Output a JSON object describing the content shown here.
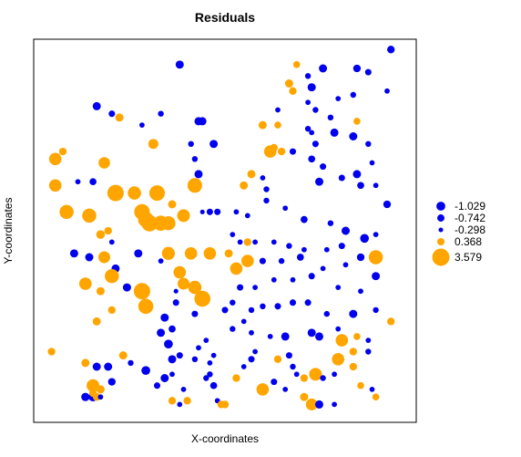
{
  "chart_data": {
    "type": "scatter",
    "title": "Residuals",
    "xlabel": "X-coordinates",
    "ylabel": "Y-coordinates",
    "xlim": [
      0,
      100
    ],
    "ylim": [
      0,
      100
    ],
    "axis_ticks": false,
    "grid": false,
    "colors": {
      "negative": "#0000EE",
      "positive": "#FFA500"
    },
    "legend": {
      "position": "right",
      "entries": [
        {
          "label": "-1.029",
          "value": -1.029,
          "color": "#0000EE"
        },
        {
          "label": "-0.742",
          "value": -0.742,
          "color": "#0000EE"
        },
        {
          "label": "-0.298",
          "value": -0.298,
          "color": "#0000EE"
        },
        {
          "label": "0.368",
          "value": 0.368,
          "color": "#FFA500"
        },
        {
          "label": "3.579",
          "value": 3.579,
          "color": "#FFA500"
        }
      ]
    },
    "points": [
      {
        "x": 38,
        "y": 94,
        "r": -0.9
      },
      {
        "x": 16,
        "y": 83,
        "r": -0.9
      },
      {
        "x": 20,
        "y": 81,
        "r": -0.6
      },
      {
        "x": 22,
        "y": 80,
        "r": 0.5
      },
      {
        "x": 28,
        "y": 78,
        "r": -0.4
      },
      {
        "x": 43,
        "y": 79,
        "r": -0.9
      },
      {
        "x": 44,
        "y": 79,
        "r": -0.9
      },
      {
        "x": 31,
        "y": 73,
        "r": 0.9
      },
      {
        "x": 33,
        "y": 81,
        "r": -0.5
      },
      {
        "x": 7,
        "y": 71,
        "r": 0.4
      },
      {
        "x": 5,
        "y": 69,
        "r": 1.6
      },
      {
        "x": 18,
        "y": 68,
        "r": 1.3
      },
      {
        "x": 41,
        "y": 73,
        "r": -0.5
      },
      {
        "x": 42,
        "y": 69,
        "r": -0.5
      },
      {
        "x": 47,
        "y": 73,
        "r": -0.9
      },
      {
        "x": 43,
        "y": 65,
        "r": -0.9
      },
      {
        "x": 5,
        "y": 62,
        "r": 1.6
      },
      {
        "x": 11,
        "y": 63,
        "r": -0.4
      },
      {
        "x": 15,
        "y": 63,
        "r": -0.7
      },
      {
        "x": 21,
        "y": 60,
        "r": 3.2
      },
      {
        "x": 26,
        "y": 60,
        "r": 1.9
      },
      {
        "x": 32,
        "y": 60,
        "r": 2.8
      },
      {
        "x": 42,
        "y": 62,
        "r": 2.4
      },
      {
        "x": 36,
        "y": 57,
        "r": 0.5
      },
      {
        "x": 8,
        "y": 55,
        "r": 2.2
      },
      {
        "x": 14,
        "y": 54,
        "r": 2.2
      },
      {
        "x": 28,
        "y": 55,
        "r": 2.8
      },
      {
        "x": 29,
        "y": 53,
        "r": 2.8
      },
      {
        "x": 30,
        "y": 52,
        "r": 3.2
      },
      {
        "x": 33,
        "y": 52,
        "r": 2.6
      },
      {
        "x": 35,
        "y": 52,
        "r": 2.2
      },
      {
        "x": 39,
        "y": 54,
        "r": 1.7
      },
      {
        "x": 44,
        "y": 55,
        "r": -0.3
      },
      {
        "x": 46,
        "y": 55,
        "r": -0.6
      },
      {
        "x": 48,
        "y": 55,
        "r": -0.6
      },
      {
        "x": 17,
        "y": 49,
        "r": 0.6
      },
      {
        "x": 19,
        "y": 50,
        "r": 0.4
      },
      {
        "x": 20,
        "y": 47,
        "r": -0.4
      },
      {
        "x": 10,
        "y": 44,
        "r": -0.9
      },
      {
        "x": 14,
        "y": 43,
        "r": -0.9
      },
      {
        "x": 21,
        "y": 40,
        "r": -0.9
      },
      {
        "x": 18,
        "y": 43,
        "r": 1.4
      },
      {
        "x": 27,
        "y": 44,
        "r": -0.9
      },
      {
        "x": 35,
        "y": 44,
        "r": 1.8
      },
      {
        "x": 41,
        "y": 44,
        "r": 1.6
      },
      {
        "x": 46,
        "y": 44,
        "r": 1.6
      },
      {
        "x": 20,
        "y": 38,
        "r": 2.2
      },
      {
        "x": 38,
        "y": 39,
        "r": 1.6
      },
      {
        "x": 39,
        "y": 36,
        "r": 1.4
      },
      {
        "x": 42,
        "y": 35,
        "r": 1.9
      },
      {
        "x": 44,
        "y": 32,
        "r": 3.0
      },
      {
        "x": 13,
        "y": 36,
        "r": 1.6
      },
      {
        "x": 17,
        "y": 34,
        "r": 0.5
      },
      {
        "x": 24,
        "y": 35,
        "r": -0.9
      },
      {
        "x": 28,
        "y": 34,
        "r": 3.2
      },
      {
        "x": 29,
        "y": 30,
        "r": 2.6
      },
      {
        "x": 33,
        "y": 42,
        "r": -0.4
      },
      {
        "x": 37,
        "y": 34,
        "r": -0.3
      },
      {
        "x": 37,
        "y": 31,
        "r": -0.6
      },
      {
        "x": 42,
        "y": 28,
        "r": -0.6
      },
      {
        "x": 20,
        "y": 29,
        "r": 0.4
      },
      {
        "x": 16,
        "y": 26,
        "r": 0.5
      },
      {
        "x": 34,
        "y": 27,
        "r": -0.9
      },
      {
        "x": 36,
        "y": 24,
        "r": -0.7
      },
      {
        "x": 33,
        "y": 23,
        "r": -0.9
      },
      {
        "x": 35,
        "y": 20,
        "r": -1.0
      },
      {
        "x": 38,
        "y": 17,
        "r": -0.6
      },
      {
        "x": 36,
        "y": 12,
        "r": -0.4
      },
      {
        "x": 43,
        "y": 19,
        "r": -0.4
      },
      {
        "x": 45,
        "y": 21,
        "r": -0.4
      },
      {
        "x": 36,
        "y": 16,
        "r": -0.9
      },
      {
        "x": 4,
        "y": 18,
        "r": 0.4
      },
      {
        "x": 13,
        "y": 15,
        "r": 0.5
      },
      {
        "x": 16,
        "y": 14,
        "r": -0.9
      },
      {
        "x": 19,
        "y": 14,
        "r": -0.9
      },
      {
        "x": 23,
        "y": 17,
        "r": 0.5
      },
      {
        "x": 25,
        "y": 15,
        "r": -0.5
      },
      {
        "x": 29,
        "y": 13,
        "r": -1.0
      },
      {
        "x": 34,
        "y": 11,
        "r": -0.9
      },
      {
        "x": 15,
        "y": 9,
        "r": 1.7
      },
      {
        "x": 20,
        "y": 10,
        "r": -0.8
      },
      {
        "x": 32,
        "y": 9,
        "r": -0.6
      },
      {
        "x": 36,
        "y": 5,
        "r": 0.4
      },
      {
        "x": 38,
        "y": 4,
        "r": -0.4
      },
      {
        "x": 39,
        "y": 8,
        "r": -0.4
      },
      {
        "x": 40,
        "y": 5,
        "r": 0.4
      },
      {
        "x": 15,
        "y": 6,
        "r": -1.0
      },
      {
        "x": 15,
        "y": 7,
        "r": 0.4
      },
      {
        "x": 17,
        "y": 8,
        "r": 0.5
      },
      {
        "x": 45,
        "y": 11,
        "r": -0.5
      },
      {
        "x": 13,
        "y": 6,
        "r": -0.9
      },
      {
        "x": 16,
        "y": 6,
        "r": 0.4
      },
      {
        "x": 16,
        "y": 6,
        "r": 0.4
      },
      {
        "x": 47,
        "y": 9,
        "r": -0.7
      },
      {
        "x": 48,
        "y": 5,
        "r": -0.4
      },
      {
        "x": 49,
        "y": 4,
        "r": 0.4
      },
      {
        "x": 50,
        "y": 4,
        "r": 0.4
      },
      {
        "x": 46,
        "y": 15,
        "r": -0.4
      },
      {
        "x": 42,
        "y": 16,
        "r": -0.5
      },
      {
        "x": 47,
        "y": 17,
        "r": -0.4
      },
      {
        "x": 13,
        "y": 6,
        "r": -0.9
      },
      {
        "x": 17,
        "y": 6,
        "r": -0.4
      },
      {
        "x": 13,
        "y": 6,
        "r": -0.9
      },
      {
        "x": 69,
        "y": 94,
        "r": 0.3
      },
      {
        "x": 76,
        "y": 93,
        "r": -0.9
      },
      {
        "x": 85,
        "y": 93,
        "r": -0.8
      },
      {
        "x": 88,
        "y": 92,
        "r": -0.6
      },
      {
        "x": 72,
        "y": 91,
        "r": -0.5
      },
      {
        "x": 67,
        "y": 89,
        "r": 0.5
      },
      {
        "x": 68,
        "y": 87,
        "r": 0.4
      },
      {
        "x": 73,
        "y": 88,
        "r": -0.9
      },
      {
        "x": 84,
        "y": 86,
        "r": -0.5
      },
      {
        "x": 80,
        "y": 85,
        "r": -0.4
      },
      {
        "x": 72,
        "y": 84,
        "r": -0.4
      },
      {
        "x": 64,
        "y": 82,
        "r": -0.4
      },
      {
        "x": 74,
        "y": 82,
        "r": -0.5
      },
      {
        "x": 78,
        "y": 80,
        "r": -0.5
      },
      {
        "x": 85,
        "y": 79,
        "r": 0.3
      },
      {
        "x": 64,
        "y": 78,
        "r": 0.3
      },
      {
        "x": 60,
        "y": 78,
        "r": 0.5
      },
      {
        "x": 72,
        "y": 77,
        "r": -0.5
      },
      {
        "x": 73,
        "y": 76,
        "r": -0.4
      },
      {
        "x": 79,
        "y": 76,
        "r": -0.9
      },
      {
        "x": 84,
        "y": 75,
        "r": -0.9
      },
      {
        "x": 88,
        "y": 73,
        "r": -0.5
      },
      {
        "x": 74,
        "y": 73,
        "r": -0.6
      },
      {
        "x": 68,
        "y": 71,
        "r": -0.6
      },
      {
        "x": 65,
        "y": 71,
        "r": 0.4
      },
      {
        "x": 63,
        "y": 72,
        "r": 0.4
      },
      {
        "x": 62,
        "y": 71,
        "r": 1.6
      },
      {
        "x": 73,
        "y": 69,
        "r": -0.7
      },
      {
        "x": 76,
        "y": 67,
        "r": -0.6
      },
      {
        "x": 81,
        "y": 64,
        "r": -0.6
      },
      {
        "x": 75,
        "y": 63,
        "r": -0.9
      },
      {
        "x": 85,
        "y": 65,
        "r": -0.9
      },
      {
        "x": 89,
        "y": 68,
        "r": -0.4
      },
      {
        "x": 90,
        "y": 62,
        "r": -0.4
      },
      {
        "x": 86,
        "y": 62,
        "r": -0.7
      },
      {
        "x": 61,
        "y": 61,
        "r": -0.5
      },
      {
        "x": 60,
        "y": 64,
        "r": -0.4
      },
      {
        "x": 57,
        "y": 65,
        "r": 0.5
      },
      {
        "x": 55,
        "y": 62,
        "r": 0.5
      },
      {
        "x": 53,
        "y": 55,
        "r": -0.4
      },
      {
        "x": 56,
        "y": 54,
        "r": -0.4
      },
      {
        "x": 61,
        "y": 58,
        "r": -0.5
      },
      {
        "x": 66,
        "y": 56,
        "r": -0.4
      },
      {
        "x": 71,
        "y": 53,
        "r": -0.7
      },
      {
        "x": 78,
        "y": 52,
        "r": -0.5
      },
      {
        "x": 82,
        "y": 50,
        "r": -0.9
      },
      {
        "x": 90,
        "y": 49,
        "r": -0.4
      },
      {
        "x": 87,
        "y": 48,
        "r": -1.0
      },
      {
        "x": 81,
        "y": 46,
        "r": -0.6
      },
      {
        "x": 77,
        "y": 45,
        "r": -0.4
      },
      {
        "x": 71,
        "y": 45,
        "r": -0.4
      },
      {
        "x": 67,
        "y": 46,
        "r": -0.5
      },
      {
        "x": 63,
        "y": 47,
        "r": -0.4
      },
      {
        "x": 58,
        "y": 47,
        "r": -0.4
      },
      {
        "x": 56,
        "y": 47,
        "r": 0.4
      },
      {
        "x": 54,
        "y": 47,
        "r": -0.4
      },
      {
        "x": 52,
        "y": 49,
        "r": -0.4
      },
      {
        "x": 51,
        "y": 44,
        "r": 0.5
      },
      {
        "x": 53,
        "y": 40,
        "r": 1.6
      },
      {
        "x": 56,
        "y": 42,
        "r": 1.6
      },
      {
        "x": 60,
        "y": 42,
        "r": -0.6
      },
      {
        "x": 65,
        "y": 42,
        "r": -0.5
      },
      {
        "x": 70,
        "y": 43,
        "r": -0.7
      },
      {
        "x": 76,
        "y": 40,
        "r": -0.4
      },
      {
        "x": 82,
        "y": 41,
        "r": -0.4
      },
      {
        "x": 86,
        "y": 43,
        "r": -0.8
      },
      {
        "x": 90,
        "y": 43,
        "r": 2.2
      },
      {
        "x": 90,
        "y": 38,
        "r": -0.9
      },
      {
        "x": 86,
        "y": 34,
        "r": -0.4
      },
      {
        "x": 80,
        "y": 35,
        "r": -0.4
      },
      {
        "x": 73,
        "y": 38,
        "r": -0.6
      },
      {
        "x": 68,
        "y": 37,
        "r": -0.4
      },
      {
        "x": 63,
        "y": 37,
        "r": -0.4
      },
      {
        "x": 58,
        "y": 35,
        "r": -0.4
      },
      {
        "x": 54,
        "y": 35,
        "r": -0.6
      },
      {
        "x": 52,
        "y": 31,
        "r": -0.5
      },
      {
        "x": 50,
        "y": 29,
        "r": -0.6
      },
      {
        "x": 57,
        "y": 29,
        "r": -0.5
      },
      {
        "x": 60,
        "y": 30,
        "r": -0.5
      },
      {
        "x": 64,
        "y": 30,
        "r": -0.6
      },
      {
        "x": 68,
        "y": 31,
        "r": -0.6
      },
      {
        "x": 72,
        "y": 31,
        "r": -0.6
      },
      {
        "x": 77,
        "y": 28,
        "r": -0.5
      },
      {
        "x": 84,
        "y": 28,
        "r": -0.9
      },
      {
        "x": 90,
        "y": 29,
        "r": -0.5
      },
      {
        "x": 88,
        "y": 21,
        "r": -0.4
      },
      {
        "x": 85,
        "y": 22,
        "r": 0.3
      },
      {
        "x": 81,
        "y": 21,
        "r": 1.6
      },
      {
        "x": 80,
        "y": 24,
        "r": -0.4
      },
      {
        "x": 75,
        "y": 22,
        "r": -0.9
      },
      {
        "x": 73,
        "y": 23,
        "r": -0.9
      },
      {
        "x": 66,
        "y": 22,
        "r": -0.9
      },
      {
        "x": 62,
        "y": 22,
        "r": -0.4
      },
      {
        "x": 57,
        "y": 23,
        "r": -0.4
      },
      {
        "x": 52,
        "y": 24,
        "r": -0.5
      },
      {
        "x": 55,
        "y": 26,
        "r": -0.4
      },
      {
        "x": 58,
        "y": 18,
        "r": -0.4
      },
      {
        "x": 64,
        "y": 16,
        "r": 0.4
      },
      {
        "x": 68,
        "y": 14,
        "r": -0.5
      },
      {
        "x": 67,
        "y": 17,
        "r": -0.6
      },
      {
        "x": 69,
        "y": 12,
        "r": -0.4
      },
      {
        "x": 71,
        "y": 11,
        "r": 0.4
      },
      {
        "x": 74,
        "y": 12,
        "r": 1.7
      },
      {
        "x": 80,
        "y": 16,
        "r": 1.6
      },
      {
        "x": 84,
        "y": 18,
        "r": 0.4
      },
      {
        "x": 88,
        "y": 18,
        "r": -0.5
      },
      {
        "x": 84,
        "y": 14,
        "r": 0.4
      },
      {
        "x": 79,
        "y": 12,
        "r": -0.4
      },
      {
        "x": 76,
        "y": 11,
        "r": -0.5
      },
      {
        "x": 63,
        "y": 10,
        "r": -0.6
      },
      {
        "x": 60,
        "y": 8,
        "r": 1.6
      },
      {
        "x": 66,
        "y": 8,
        "r": -0.4
      },
      {
        "x": 71,
        "y": 6,
        "r": 0.5
      },
      {
        "x": 73,
        "y": 4,
        "r": 1.4
      },
      {
        "x": 75,
        "y": 4,
        "r": -0.9
      },
      {
        "x": 79,
        "y": 4,
        "r": -0.4
      },
      {
        "x": 86,
        "y": 9,
        "r": 0.3
      },
      {
        "x": 89,
        "y": 8,
        "r": -0.4
      },
      {
        "x": 90,
        "y": 6,
        "r": 0.3
      },
      {
        "x": 53,
        "y": 11,
        "r": 0.4
      },
      {
        "x": 55,
        "y": 14,
        "r": -0.4
      },
      {
        "x": 57,
        "y": 16,
        "r": -0.6
      },
      {
        "x": 46,
        "y": 12,
        "r": -0.5
      },
      {
        "x": 94,
        "y": 98,
        "r": -0.8
      },
      {
        "x": 94,
        "y": 26,
        "r": 0.4
      },
      {
        "x": 93,
        "y": 87,
        "r": -0.4
      },
      {
        "x": 93,
        "y": 57,
        "r": -0.8
      }
    ]
  }
}
